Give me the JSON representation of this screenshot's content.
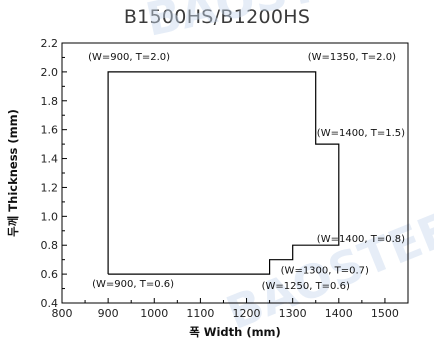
{
  "chart_data": {
    "type": "line",
    "title": "B1500HS/B1200HS",
    "xlabel": "폭 Width (mm)",
    "ylabel": "두께 Thickness (mm)",
    "xlim": [
      800,
      1550
    ],
    "ylim": [
      0.4,
      2.2
    ],
    "x_ticks": [
      800,
      900,
      1000,
      1100,
      1200,
      1300,
      1400,
      1500
    ],
    "y_ticks": [
      "0.4",
      "0.6",
      "0.8",
      "1.0",
      "1.2",
      "1.4",
      "1.6",
      "1.8",
      "2.0",
      "2.2"
    ],
    "grid": false,
    "series": [
      {
        "color": "#000000",
        "points": [
          [
            900,
            0.6
          ],
          [
            900,
            2.0
          ],
          [
            1350,
            2.0
          ],
          [
            1350,
            1.5
          ],
          [
            1400,
            1.5
          ],
          [
            1400,
            0.8
          ],
          [
            1300,
            0.8
          ],
          [
            1300,
            0.7
          ],
          [
            1250,
            0.7
          ],
          [
            1250,
            0.6
          ],
          [
            900,
            0.6
          ]
        ]
      }
    ],
    "annotations": [
      {
        "text": "(W=900, T=2.0)",
        "x": 900,
        "y": 2.0,
        "pos": "above"
      },
      {
        "text": "(W=1350, T=2.0)",
        "x": 1350,
        "y": 2.0,
        "pos": "above"
      },
      {
        "text": "(W=1400, T=1.5)",
        "x": 1400,
        "y": 1.5,
        "pos": "above"
      },
      {
        "text": "(W=1400, T=0.8)",
        "x": 1400,
        "y": 0.8,
        "pos": "above"
      },
      {
        "text": "(W=1300, T=0.7)",
        "x": 1300,
        "y": 0.7,
        "pos": "below"
      },
      {
        "text": "(W=1250, T=0.6)",
        "x": 1250,
        "y": 0.6,
        "pos": "below"
      },
      {
        "text": "(W=900, T=0.6)",
        "x": 900,
        "y": 0.6,
        "pos": "below"
      }
    ]
  },
  "watermark": "BAOSTEEL"
}
